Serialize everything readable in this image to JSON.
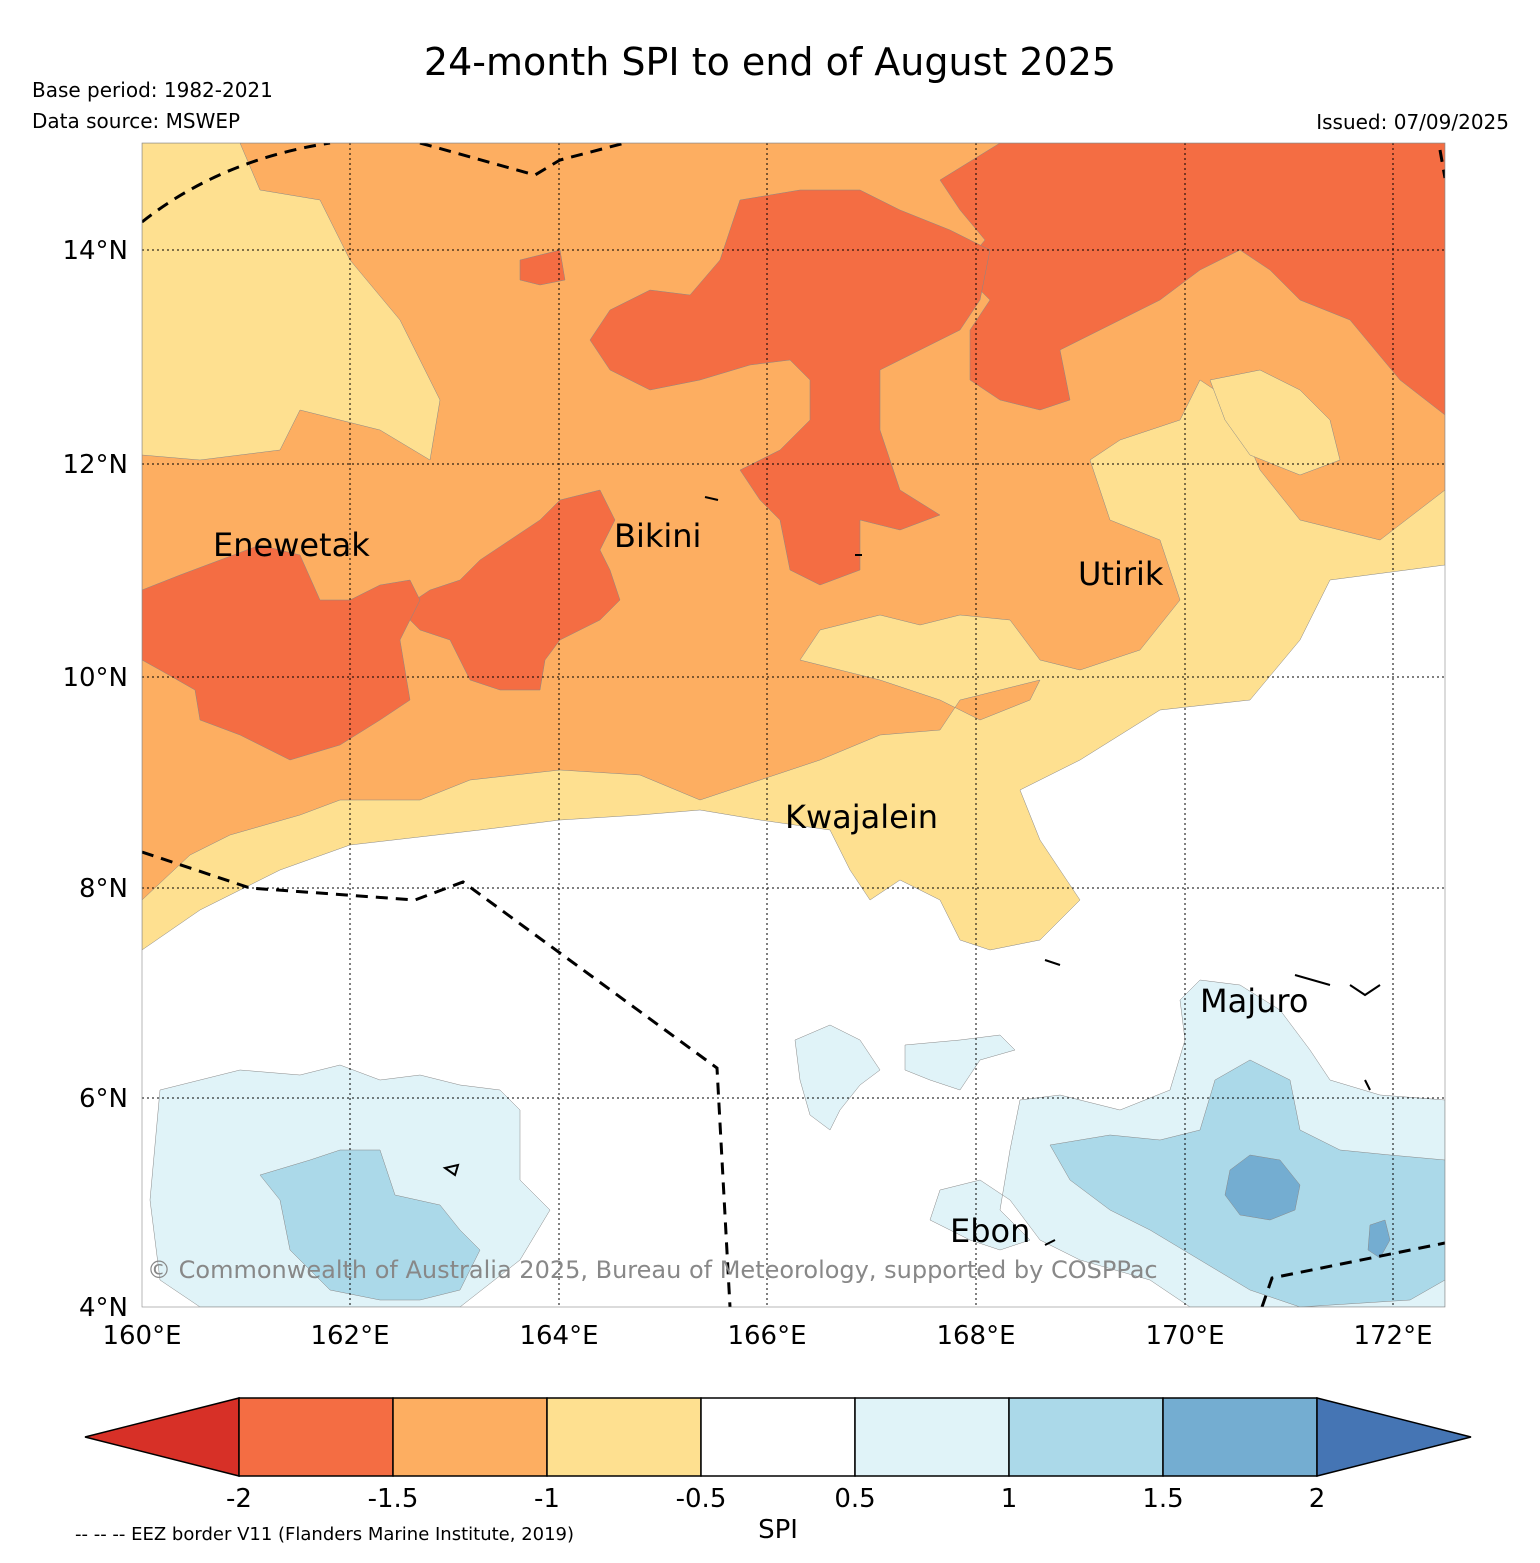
{
  "header": {
    "title": "24-month SPI to end of August 2025",
    "base_period": "Base period: 1982-2021",
    "data_source": "Data source: MSWEP",
    "issued": "Issued: 07/09/2025"
  },
  "map": {
    "lat_ticks": [
      "14°N",
      "12°N",
      "10°N",
      "8°N",
      "6°N",
      "4°N"
    ],
    "lon_ticks": [
      "160°E",
      "162°E",
      "164°E",
      "166°E",
      "168°E",
      "170°E",
      "172°E"
    ],
    "places": {
      "enewetak": "Enewetak",
      "bikini": "Bikini",
      "utirik": "Utirik",
      "kwajalein": "Kwajalein",
      "majuro": "Majuro",
      "ebon": "Ebon"
    },
    "copyright": "© Commonwealth of Australia 2025, Bureau of Meteorology, supported by COSPPac"
  },
  "colorbar": {
    "title": "SPI",
    "tick_labels": [
      "-2",
      "-1.5",
      "-1",
      "-0.5",
      "0.5",
      "1",
      "1.5",
      "2"
    ],
    "colors": {
      "lt_-2": "#d73027",
      "-2_-1.5": "#f46d43",
      "-1.5_-1": "#fdae61",
      "-1_-0.5": "#fee090",
      "-0.5_0.5": "#ffffff",
      "0.5_1": "#e0f3f8",
      "1_1.5": "#abd9e9",
      "1.5_2": "#74add1",
      "gt_2": "#4575b4"
    }
  },
  "footer": {
    "eez_note": "-- -- -- EEZ border V11 (Flanders Marine Institute, 2019)"
  }
}
